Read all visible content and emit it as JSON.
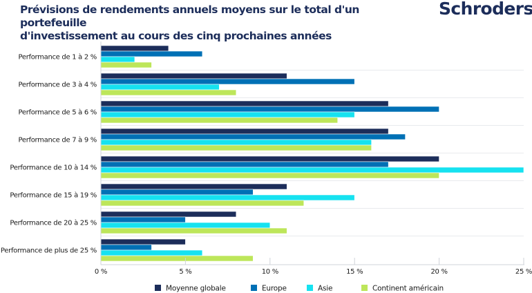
{
  "header": {
    "title_line1": "Prévisions de rendements annuels moyens sur le total d'un portefeuille",
    "title_line2": "d'investissement au cours des cinq prochaines années",
    "logo": "Schroders"
  },
  "colors": {
    "Moyenne globale": "#1c2d5a",
    "Europe": "#0070b5",
    "Asie": "#16e2f0",
    "Continent américain": "#bde65a",
    "text": "#1a1a1a",
    "axis": "#cfd3d8"
  },
  "chart_data": {
    "type": "bar",
    "orientation": "horizontal",
    "title": "Prévisions de rendements annuels moyens sur le total d'un portefeuille d'investissement au cours des cinq prochaines années",
    "xlabel": "",
    "ylabel": "",
    "xlim": [
      0,
      25
    ],
    "xticks": [
      0,
      5,
      10,
      15,
      20,
      25
    ],
    "xtick_labels": [
      "0 %",
      "5 %",
      "10 %",
      "15 %",
      "20 %",
      "25 %"
    ],
    "grid": false,
    "legend_position": "bottom",
    "categories": [
      "Performance de 1 à 2 %",
      "Performance de 3 à 4 %",
      "Performance de 5 à 6 %",
      "Performance de 7 à 9 %",
      "Performance de 10 à 14 %",
      "Performance de 15 à 19 %",
      "Performance de 20 à 25 %",
      "Performance de plus de 25 %"
    ],
    "series": [
      {
        "name": "Moyenne globale",
        "values": [
          4,
          11,
          17,
          17,
          20,
          11,
          8,
          5
        ]
      },
      {
        "name": "Europe",
        "values": [
          6,
          15,
          20,
          18,
          17,
          9,
          5,
          3
        ]
      },
      {
        "name": "Asie",
        "values": [
          2,
          7,
          15,
          16,
          25,
          15,
          10,
          6
        ]
      },
      {
        "name": "Continent américain",
        "values": [
          3,
          8,
          14,
          16,
          20,
          12,
          11,
          9
        ]
      }
    ]
  }
}
